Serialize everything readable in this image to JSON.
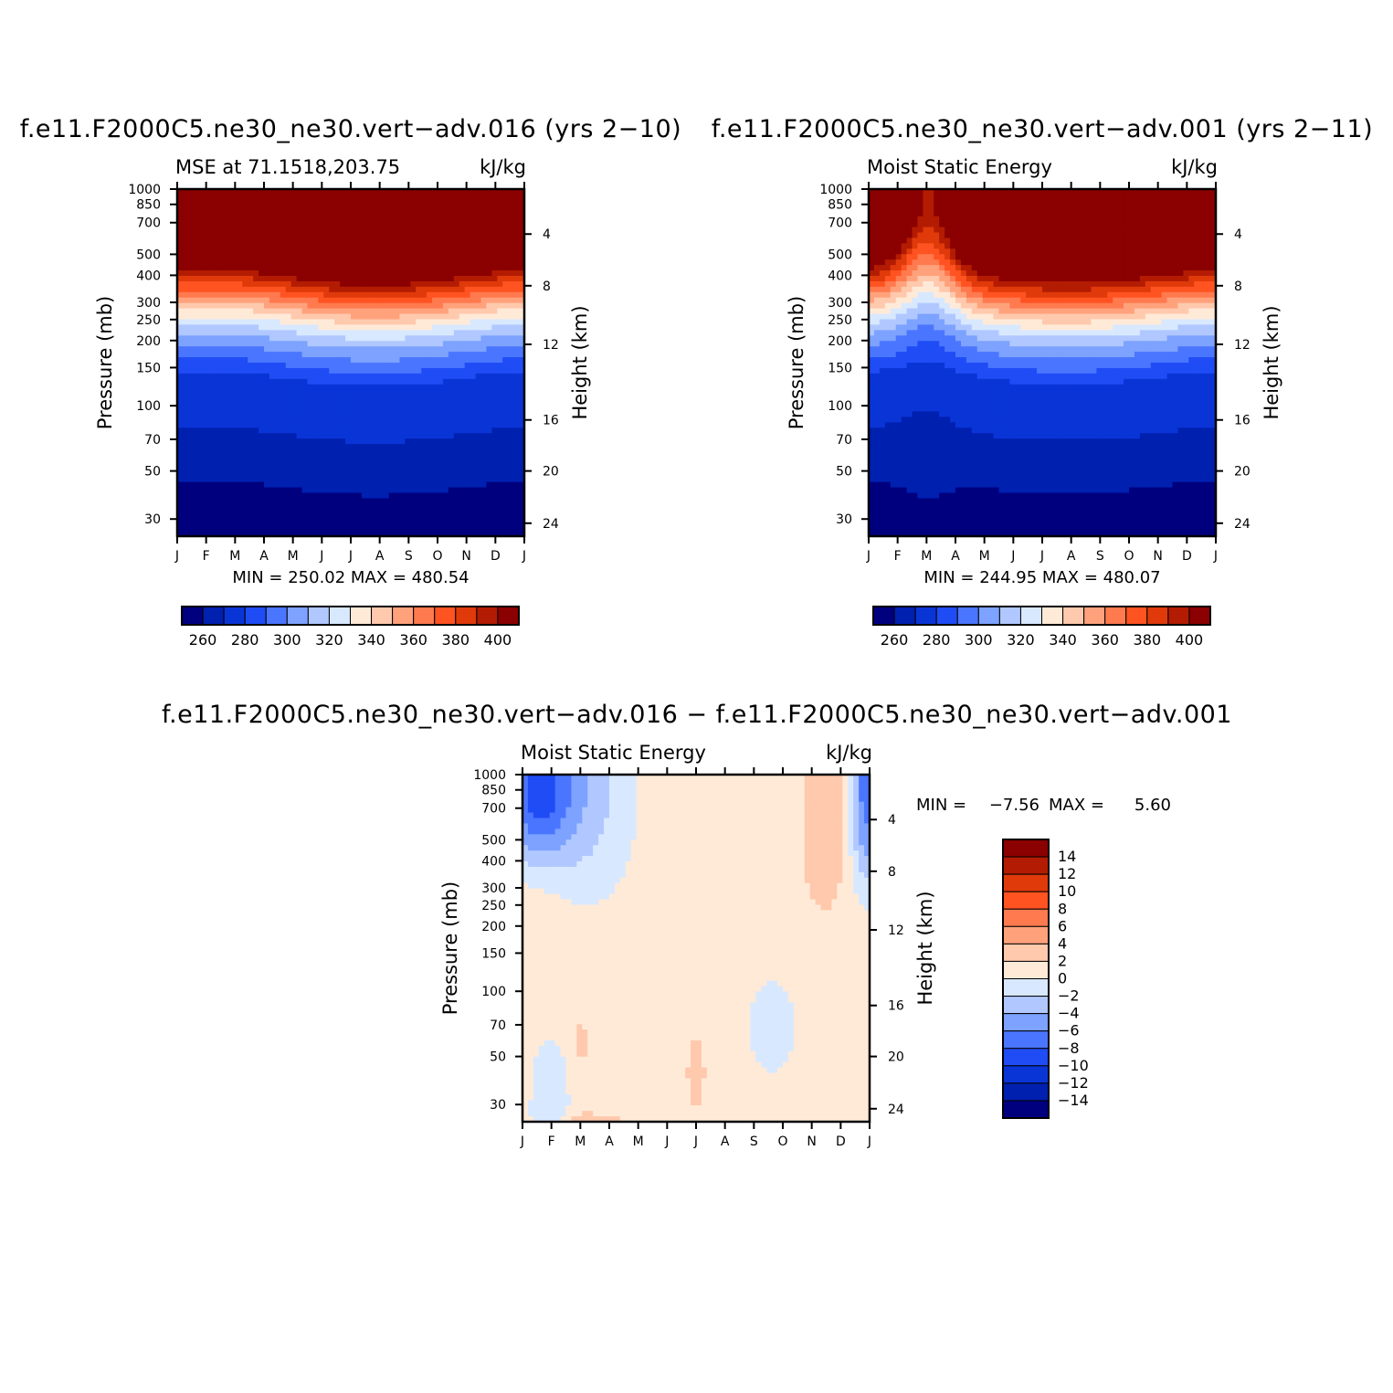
{
  "colors": {
    "seq16": [
      "#00007f",
      "#0020b0",
      "#0a35d6",
      "#1f4cf5",
      "#4a76ff",
      "#7da2ff",
      "#b0c8ff",
      "#d8e8ff",
      "#ffead8",
      "#ffc9ad",
      "#ffa27c",
      "#ff7a4f",
      "#ff5321",
      "#e03a0b",
      "#b31c02",
      "#8b0000"
    ],
    "diff16": [
      "#00007f",
      "#0020b0",
      "#0a35d6",
      "#1f4cf5",
      "#4a76ff",
      "#7da2ff",
      "#b0c8ff",
      "#d8e8ff",
      "#ffead8",
      "#ffc9ad",
      "#ffa27c",
      "#ff7a4f",
      "#ff5321",
      "#e03a0b",
      "#b31c02",
      "#8b0000"
    ]
  },
  "chart_data": [
    {
      "type": "heatmap",
      "title": "f.e11.F2000C5.ne30_ne30.vert−adv.016 (yrs 2−10)",
      "subtitle_left": "MSE at 71.1518,203.75",
      "subtitle_right": "kJ/kg",
      "ylabel": "Pressure (mb)",
      "ylabel_right": "Height (km)",
      "x_ticks": [
        "J",
        "F",
        "M",
        "A",
        "M",
        "J",
        "J",
        "A",
        "S",
        "O",
        "N",
        "D",
        "J"
      ],
      "y_ticks": [
        30,
        50,
        70,
        100,
        150,
        200,
        250,
        300,
        400,
        500,
        700,
        850,
        1000
      ],
      "y_ticks_right": [
        24,
        20,
        16,
        12,
        8,
        4
      ],
      "ylim": [
        1000,
        25
      ],
      "log_pressure": true,
      "stats": "MIN = 250.02 MAX = 480.54",
      "min": 250.02,
      "max": 480.54,
      "levels": [
        260,
        270,
        280,
        290,
        300,
        310,
        320,
        330,
        340,
        350,
        360,
        370,
        380,
        390,
        400
      ],
      "colorbar_labels": [
        "260",
        "280",
        "300",
        "320",
        "340",
        "360",
        "380",
        "400"
      ]
    },
    {
      "type": "heatmap",
      "title": "f.e11.F2000C5.ne30_ne30.vert−adv.001 (yrs 2−11)",
      "subtitle_left": "Moist Static Energy",
      "subtitle_right": "kJ/kg",
      "ylabel": "Pressure (mb)",
      "ylabel_right": "Height (km)",
      "x_ticks": [
        "J",
        "F",
        "M",
        "A",
        "M",
        "J",
        "J",
        "A",
        "S",
        "O",
        "N",
        "D",
        "J"
      ],
      "y_ticks": [
        30,
        50,
        70,
        100,
        150,
        200,
        250,
        300,
        400,
        500,
        700,
        850,
        1000
      ],
      "y_ticks_right": [
        24,
        20,
        16,
        12,
        8,
        4
      ],
      "ylim": [
        1000,
        25
      ],
      "log_pressure": true,
      "stats": "MIN = 244.95 MAX = 480.07",
      "min": 244.95,
      "max": 480.07,
      "levels": [
        260,
        270,
        280,
        290,
        300,
        310,
        320,
        330,
        340,
        350,
        360,
        370,
        380,
        390,
        400
      ],
      "colorbar_labels": [
        "260",
        "280",
        "300",
        "320",
        "340",
        "360",
        "380",
        "400"
      ]
    },
    {
      "type": "heatmap",
      "title": "f.e11.F2000C5.ne30_ne30.vert−adv.016 − f.e11.F2000C5.ne30_ne30.vert−adv.001",
      "subtitle_left": "Moist Static Energy",
      "subtitle_right": "kJ/kg",
      "ylabel": "Pressure (mb)",
      "ylabel_right": "Height (km)",
      "x_ticks": [
        "J",
        "F",
        "M",
        "A",
        "M",
        "J",
        "J",
        "A",
        "S",
        "O",
        "N",
        "D",
        "J"
      ],
      "y_ticks": [
        30,
        50,
        70,
        100,
        150,
        200,
        250,
        300,
        400,
        500,
        700,
        850,
        1000
      ],
      "y_ticks_right": [
        24,
        20,
        16,
        12,
        8,
        4
      ],
      "ylim": [
        1000,
        25
      ],
      "log_pressure": true,
      "stats_label_min": "MIN =",
      "stats_min": "−7.56",
      "stats_label_max": "MAX =",
      "stats_max": "5.60",
      "min": -7.56,
      "max": 5.6,
      "levels": [
        -14,
        -12,
        -10,
        -8,
        -6,
        -4,
        -2,
        0,
        2,
        4,
        6,
        8,
        10,
        12,
        14
      ],
      "colorbar_labels": [
        "14",
        "12",
        "10",
        "8",
        "6",
        "4",
        "2",
        "0",
        "−2",
        "−4",
        "−6",
        "−8",
        "−10",
        "−12",
        "−14"
      ]
    }
  ]
}
